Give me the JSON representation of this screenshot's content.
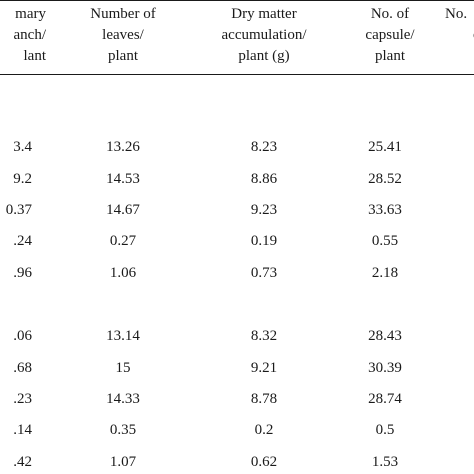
{
  "headers": [
    {
      "lines": [
        "mary",
        "anch/",
        "lant"
      ]
    },
    {
      "lines": [
        "Number of",
        "leaves/",
        "plant"
      ]
    },
    {
      "lines": [
        "Dry matter",
        "accumulation/",
        "plant (g)"
      ]
    },
    {
      "lines": [
        "No. of",
        "capsule/",
        "plant"
      ]
    },
    {
      "lines": [
        "No.",
        "c"
      ]
    }
  ],
  "rows": [
    [
      "3.4",
      "13.26",
      "8.23",
      "25.41"
    ],
    [
      "9.2",
      "14.53",
      "8.86",
      "28.52"
    ],
    [
      "0.37",
      "14.67",
      "9.23",
      "33.63"
    ],
    [
      ".24",
      "0.27",
      "0.19",
      "0.55"
    ],
    [
      ".96",
      "1.06",
      "0.73",
      "2.18"
    ],
    [
      ".06",
      "13.14",
      "8.32",
      "28.43"
    ],
    [
      ".68",
      "15",
      "9.21",
      "30.39"
    ],
    [
      ".23",
      "14.33",
      "8.78",
      "28.74"
    ],
    [
      ".14",
      "0.35",
      "0.2",
      "0.5"
    ],
    [
      ".42",
      "1.07",
      "0.62",
      "1.53"
    ]
  ]
}
